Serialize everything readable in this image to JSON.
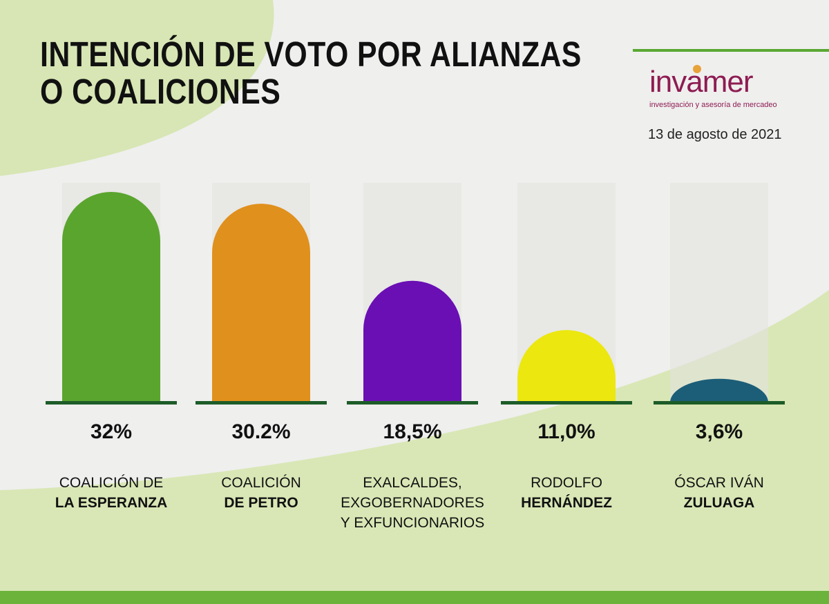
{
  "header": {
    "title_lines": [
      "INTENCIÓN DE VOTO POR ALIANZAS",
      "O COALICIONES"
    ],
    "date": "13 de agosto de 2021"
  },
  "brand": {
    "name": "invamer",
    "tagline": "investigación y asesoría de mercadeo",
    "color": "#8e1c52"
  },
  "chart_data": {
    "type": "bar",
    "categories": [
      [
        "COALICIÓN DE",
        "LA ESPERANZA"
      ],
      [
        "COALICIÓN",
        "DE PETRO"
      ],
      [
        "EXALCALDES,",
        "EXGOBERNADORES",
        "Y EXFUNCIONARIOS"
      ],
      [
        "RODOLFO",
        "HERNÁNDEZ"
      ],
      [
        "ÓSCAR IVÁN",
        "ZULUAGA"
      ]
    ],
    "category_bold_lines": [
      [
        1
      ],
      [
        1
      ],
      [],
      [
        1
      ],
      [
        1
      ]
    ],
    "values": [
      32,
      30.2,
      18.5,
      11.0,
      3.6
    ],
    "value_labels": [
      "32%",
      "30.2%",
      "18,5%",
      "11,0%",
      "3,6%"
    ],
    "colors": [
      "#5aa52e",
      "#e0901c",
      "#6a0fb4",
      "#ece70f",
      "#1c5e78"
    ],
    "ylim": [
      0,
      32
    ],
    "title": "INTENCIÓN DE VOTO POR ALIANZAS O COALICIONES",
    "xlabel": "",
    "ylabel": "",
    "grid": false,
    "legend": "none"
  }
}
